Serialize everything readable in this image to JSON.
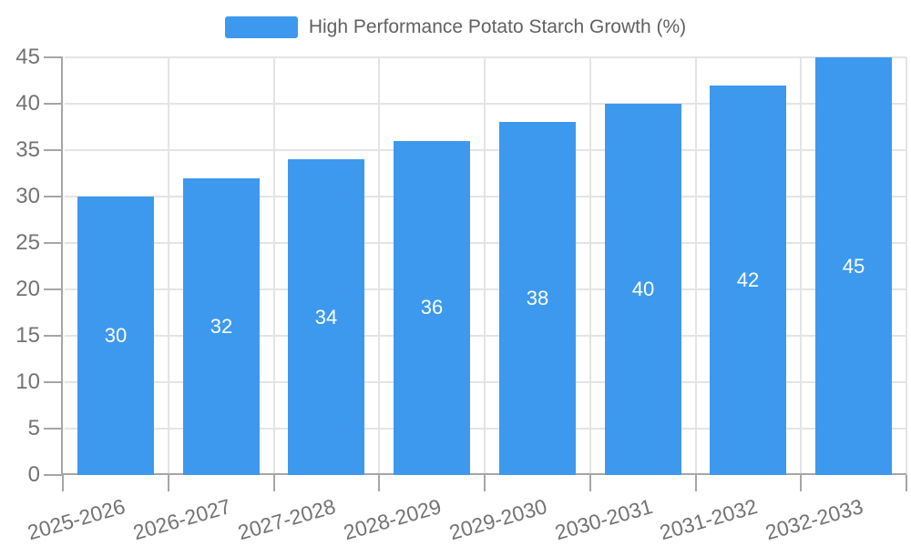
{
  "chart_data": {
    "type": "bar",
    "title": "High Performance Potato Starch Growth (%)",
    "legend": {
      "label": "High Performance Potato Starch Growth (%)",
      "position": "top"
    },
    "categories": [
      "2025-2026",
      "2026-2027",
      "2027-2028",
      "2028-2029",
      "2029-2030",
      "2030-2031",
      "2031-2032",
      "2032-2033"
    ],
    "series": [
      {
        "name": "High Performance Potato Starch Growth (%)",
        "values": [
          30,
          32,
          34,
          36,
          38,
          40,
          42,
          45
        ]
      }
    ],
    "xlabel": "",
    "ylabel": "",
    "ylim": [
      0,
      45
    ],
    "yticks": [
      0,
      5,
      10,
      15,
      20,
      25,
      30,
      35,
      40,
      45
    ],
    "grid": true,
    "x_label_rotation_deg": -16,
    "colors": {
      "bar": "#3D99EE",
      "value_label": "#ffffff",
      "axis_line": "#a6a6a6",
      "grid_line": "#e4e4e4",
      "tick_label": "#737373",
      "legend_text": "#616161",
      "background": "#ffffff"
    }
  }
}
